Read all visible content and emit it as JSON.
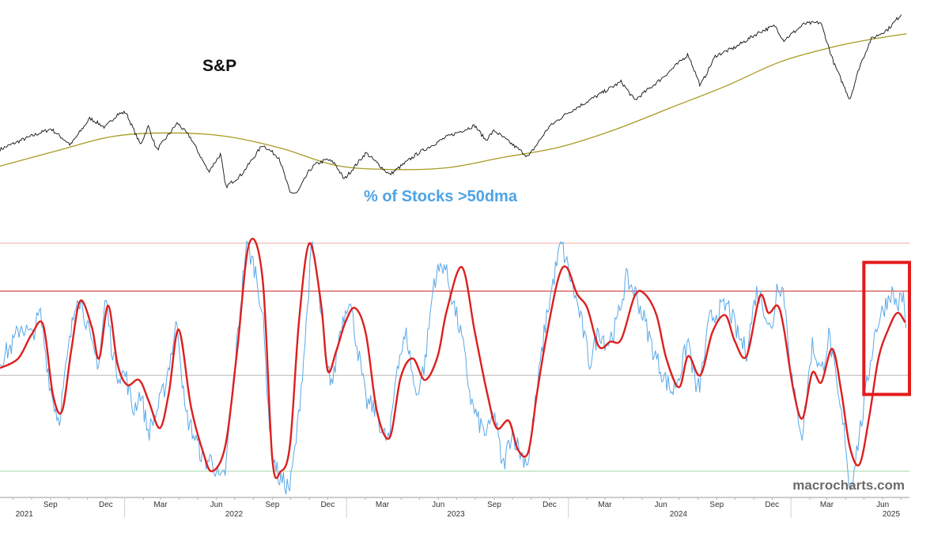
{
  "labels": {
    "sp_title": "S&P",
    "breadth_title": "% of Stocks >50dma",
    "watermark": "macrocharts.com"
  },
  "colors": {
    "sp_line": "#111111",
    "sp_ma": "#a89a22",
    "breadth_raw": "#5aa9e8",
    "breadth_smooth": "#dd1f1f",
    "upper_ref": "#c61f1f",
    "top_ref": "#f0a8a8",
    "mid_ref": "#b9b9b9",
    "low_ref": "#9fd8a8",
    "highlight_box": "#e31b1b"
  },
  "chart_data": [
    {
      "type": "line",
      "title": "S&P",
      "x_axis": {
        "range": [
          "2021-06-10",
          "2025-07-15"
        ],
        "month_ticks": [
          {
            "date": "2021-09-01",
            "label": "Sep"
          },
          {
            "date": "2021-12-01",
            "label": "Dec"
          },
          {
            "date": "2022-03-01",
            "label": "Mar"
          },
          {
            "date": "2022-06-01",
            "label": "Jun"
          },
          {
            "date": "2022-09-01",
            "label": "Sep"
          },
          {
            "date": "2022-12-01",
            "label": "Dec"
          },
          {
            "date": "2023-03-01",
            "label": "Mar"
          },
          {
            "date": "2023-06-01",
            "label": "Jun"
          },
          {
            "date": "2023-09-01",
            "label": "Sep"
          },
          {
            "date": "2023-12-01",
            "label": "Dec"
          },
          {
            "date": "2024-03-01",
            "label": "Mar"
          },
          {
            "date": "2024-06-01",
            "label": "Jun"
          },
          {
            "date": "2024-09-01",
            "label": "Sep"
          },
          {
            "date": "2024-12-01",
            "label": "Dec"
          },
          {
            "date": "2025-03-01",
            "label": "Mar"
          },
          {
            "date": "2025-06-01",
            "label": "Jun"
          }
        ],
        "year_labels": [
          {
            "date": "2021-07-20",
            "label": "2021"
          },
          {
            "date": "2022-06-30",
            "label": "2022"
          },
          {
            "date": "2023-06-30",
            "label": "2023"
          },
          {
            "date": "2024-06-30",
            "label": "2024"
          },
          {
            "date": "2025-06-15",
            "label": "2025"
          }
        ]
      },
      "y_range": [
        3450,
        6300
      ],
      "series": [
        {
          "role": "price",
          "x": [
            "2021-06-10",
            "2021-07-15",
            "2021-08-15",
            "2021-09-02",
            "2021-10-04",
            "2021-11-05",
            "2021-11-30",
            "2021-12-20",
            "2022-01-03",
            "2022-01-27",
            "2022-02-09",
            "2022-02-23",
            "2022-03-29",
            "2022-04-20",
            "2022-05-19",
            "2022-06-08",
            "2022-06-16",
            "2022-07-12",
            "2022-08-16",
            "2022-09-12",
            "2022-09-30",
            "2022-10-12",
            "2022-10-31",
            "2022-11-10",
            "2022-11-30",
            "2022-12-13",
            "2022-12-28",
            "2023-02-02",
            "2023-03-13",
            "2023-04-28",
            "2023-06-15",
            "2023-07-31",
            "2023-08-18",
            "2023-09-01",
            "2023-10-27",
            "2023-11-30",
            "2023-12-29",
            "2024-02-29",
            "2024-03-28",
            "2024-04-19",
            "2024-05-31",
            "2024-07-16",
            "2024-08-05",
            "2024-08-30",
            "2024-09-30",
            "2024-11-11",
            "2024-12-06",
            "2024-12-20",
            "2025-01-23",
            "2025-02-19",
            "2025-03-13",
            "2025-04-08",
            "2025-04-24",
            "2025-05-13",
            "2025-06-10",
            "2025-07-03"
          ],
          "values": [
            4230,
            4370,
            4480,
            4540,
            4300,
            4700,
            4560,
            4760,
            4790,
            4300,
            4580,
            4220,
            4630,
            4400,
            3900,
            4160,
            3666,
            3850,
            4300,
            4110,
            3580,
            3577,
            3900,
            4000,
            4080,
            4020,
            3780,
            4180,
            3850,
            4170,
            4420,
            4590,
            4370,
            4515,
            4120,
            4570,
            4770,
            5100,
            5250,
            4970,
            5280,
            5660,
            5190,
            5640,
            5760,
            6000,
            6090,
            5870,
            6120,
            6140,
            5520,
            4980,
            5480,
            5890,
            6040,
            6280
          ]
        },
        {
          "role": "moving_average",
          "x": [
            "2021-06-10",
            "2021-09-15",
            "2021-12-15",
            "2022-03-15",
            "2022-06-15",
            "2022-09-15",
            "2022-12-15",
            "2023-03-15",
            "2023-06-15",
            "2023-09-15",
            "2023-12-15",
            "2024-03-15",
            "2024-06-15",
            "2024-09-15",
            "2024-12-15",
            "2025-03-15",
            "2025-05-15",
            "2025-07-10"
          ],
          "values": [
            3980,
            4220,
            4430,
            4480,
            4430,
            4250,
            3990,
            3930,
            3955,
            4110,
            4260,
            4520,
            4850,
            5180,
            5550,
            5780,
            5890,
            5970
          ]
        }
      ]
    },
    {
      "type": "line",
      "title": "% of Stocks >50dma",
      "y_range": [
        0,
        100
      ],
      "reference_lines": [
        {
          "value": 100,
          "role": "top"
        },
        {
          "value": 80,
          "role": "overbought"
        },
        {
          "value": 45,
          "role": "mid"
        },
        {
          "value": 5,
          "role": "oversold"
        }
      ],
      "highlight_box": {
        "x_range": [
          "2025-05-01",
          "2025-07-15"
        ],
        "y_range": [
          37,
          92
        ]
      },
      "series": [
        {
          "role": "smoothed",
          "x": [
            "2021-06-10",
            "2021-07-10",
            "2021-08-01",
            "2021-08-20",
            "2021-09-05",
            "2021-09-20",
            "2021-10-05",
            "2021-10-20",
            "2021-11-08",
            "2021-11-20",
            "2021-12-05",
            "2021-12-20",
            "2022-01-05",
            "2022-01-25",
            "2022-02-10",
            "2022-02-28",
            "2022-03-15",
            "2022-03-31",
            "2022-04-20",
            "2022-05-10",
            "2022-05-25",
            "2022-06-16",
            "2022-07-05",
            "2022-07-25",
            "2022-08-16",
            "2022-09-01",
            "2022-09-15",
            "2022-09-30",
            "2022-10-15",
            "2022-11-01",
            "2022-11-20",
            "2022-12-01",
            "2022-12-15",
            "2022-12-30",
            "2023-01-15",
            "2023-02-02",
            "2023-02-20",
            "2023-03-13",
            "2023-03-31",
            "2023-04-20",
            "2023-05-10",
            "2023-05-31",
            "2023-06-15",
            "2023-07-10",
            "2023-07-31",
            "2023-08-20",
            "2023-09-05",
            "2023-09-25",
            "2023-10-10",
            "2023-10-27",
            "2023-11-10",
            "2023-11-25",
            "2023-12-15",
            "2023-12-29",
            "2024-01-15",
            "2024-02-01",
            "2024-02-20",
            "2024-03-10",
            "2024-03-28",
            "2024-04-19",
            "2024-05-05",
            "2024-05-25",
            "2024-06-10",
            "2024-07-01",
            "2024-07-16",
            "2024-08-05",
            "2024-08-25",
            "2024-09-15",
            "2024-10-01",
            "2024-10-20",
            "2024-11-11",
            "2024-11-25",
            "2024-12-10",
            "2024-12-20",
            "2025-01-05",
            "2025-01-20",
            "2025-02-05",
            "2025-02-20",
            "2025-03-10",
            "2025-03-25",
            "2025-04-08",
            "2025-04-24",
            "2025-05-10",
            "2025-05-25",
            "2025-06-10",
            "2025-06-25",
            "2025-07-08"
          ],
          "values": [
            48,
            52,
            62,
            66,
            37,
            30,
            55,
            76,
            65,
            52,
            74,
            50,
            41,
            43,
            34,
            23,
            38,
            64,
            32,
            13,
            5,
            16,
            55,
            100,
            85,
            10,
            5,
            16,
            68,
            100,
            75,
            47,
            55,
            67,
            73,
            62,
            30,
            19,
            44,
            52,
            43,
            53,
            72,
            90,
            63,
            38,
            23,
            26,
            14,
            13,
            37,
            60,
            85,
            90,
            79,
            73,
            57,
            59,
            60,
            78,
            79,
            70,
            52,
            40,
            53,
            45,
            63,
            70,
            59,
            53,
            78,
            71,
            74,
            65,
            39,
            27,
            46,
            42,
            56,
            38,
            15,
            8,
            28,
            52,
            64,
            71,
            67
          ]
        },
        {
          "role": "raw",
          "x": [
            "2021-06-10",
            "2021-07-01",
            "2021-07-15",
            "2021-08-01",
            "2021-08-15",
            "2021-09-02",
            "2021-09-15",
            "2021-09-30",
            "2021-10-15",
            "2021-10-30",
            "2021-11-08",
            "2021-11-20",
            "2021-12-01",
            "2021-12-10",
            "2021-12-20",
            "2022-01-03",
            "2022-01-15",
            "2022-01-27",
            "2022-02-09",
            "2022-02-23",
            "2022-03-08",
            "2022-03-29",
            "2022-04-10",
            "2022-04-25",
            "2022-05-12",
            "2022-05-25",
            "2022-06-08",
            "2022-06-16",
            "2022-07-01",
            "2022-07-20",
            "2022-08-05",
            "2022-08-16",
            "2022-08-30",
            "2022-09-12",
            "2022-09-30",
            "2022-10-12",
            "2022-10-25",
            "2022-11-05",
            "2022-11-15",
            "2022-11-30",
            "2022-12-10",
            "2022-12-20",
            "2023-01-05",
            "2023-01-20",
            "2023-02-02",
            "2023-02-20",
            "2023-03-02",
            "2023-03-13",
            "2023-03-25",
            "2023-04-10",
            "2023-04-25",
            "2023-05-10",
            "2023-05-25",
            "2023-06-10",
            "2023-06-25",
            "2023-07-10",
            "2023-07-25",
            "2023-08-05",
            "2023-08-20",
            "2023-09-01",
            "2023-09-15",
            "2023-09-30",
            "2023-10-15",
            "2023-10-27",
            "2023-11-10",
            "2023-11-25",
            "2023-12-10",
            "2023-12-20",
            "2024-01-05",
            "2024-01-20",
            "2024-02-05",
            "2024-02-20",
            "2024-03-05",
            "2024-03-20",
            "2024-04-05",
            "2024-04-19",
            "2024-05-05",
            "2024-05-20",
            "2024-06-05",
            "2024-06-20",
            "2024-07-05",
            "2024-07-16",
            "2024-07-30",
            "2024-08-05",
            "2024-08-20",
            "2024-09-05",
            "2024-09-20",
            "2024-10-05",
            "2024-10-20",
            "2024-11-05",
            "2024-11-15",
            "2024-11-30",
            "2024-12-10",
            "2024-12-20",
            "2025-01-05",
            "2025-01-20",
            "2025-02-05",
            "2025-02-20",
            "2025-03-05",
            "2025-03-20",
            "2025-04-01",
            "2025-04-08",
            "2025-04-18",
            "2025-04-30",
            "2025-05-10",
            "2025-05-20",
            "2025-06-01",
            "2025-06-15",
            "2025-06-25",
            "2025-07-05",
            "2025-07-10"
          ],
          "values": [
            51,
            58,
            66,
            61,
            71,
            38,
            26,
            54,
            80,
            68,
            56,
            50,
            78,
            58,
            46,
            45,
            30,
            38,
            21,
            30,
            40,
            68,
            30,
            20,
            9,
            10,
            0,
            5,
            48,
            100,
            88,
            70,
            14,
            2,
            -2,
            22,
            60,
            100,
            82,
            47,
            42,
            62,
            78,
            55,
            34,
            30,
            20,
            18,
            50,
            62,
            36,
            50,
            85,
            92,
            76,
            60,
            34,
            26,
            20,
            30,
            6,
            22,
            12,
            9,
            38,
            68,
            88,
            100,
            85,
            70,
            50,
            64,
            58,
            66,
            85,
            80,
            68,
            55,
            45,
            38,
            48,
            60,
            38,
            42,
            68,
            72,
            74,
            62,
            55,
            80,
            76,
            62,
            84,
            80,
            38,
            20,
            58,
            46,
            62,
            35,
            18,
            -4,
            12,
            30,
            48,
            64,
            72,
            80,
            74,
            78,
            62
          ]
        }
      ]
    }
  ]
}
